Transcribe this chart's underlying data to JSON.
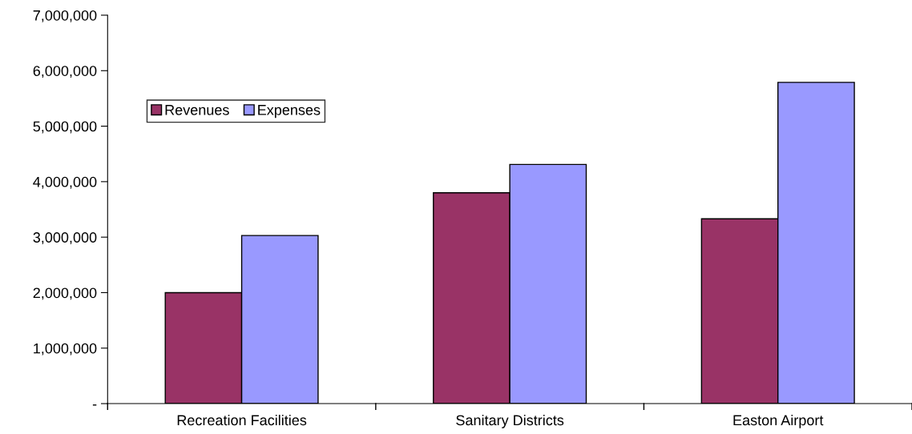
{
  "chart_data": {
    "type": "bar",
    "categories": [
      "Recreation Facilities",
      "Sanitary Districts",
      "Easton Airport"
    ],
    "series": [
      {
        "name": "Revenues",
        "color": "#993366",
        "values": [
          2000000,
          3800000,
          3330000
        ]
      },
      {
        "name": "Expenses",
        "color": "#9999ff",
        "values": [
          3030000,
          4310000,
          5790000
        ]
      }
    ],
    "ylim": [
      0,
      7000000
    ],
    "yticks": [
      {
        "value": 0,
        "label": "-"
      },
      {
        "value": 1000000,
        "label": "1,000,000"
      },
      {
        "value": 2000000,
        "label": "2,000,000"
      },
      {
        "value": 3000000,
        "label": "3,000,000"
      },
      {
        "value": 4000000,
        "label": "4,000,000"
      },
      {
        "value": 5000000,
        "label": "5,000,000"
      },
      {
        "value": 6000000,
        "label": "6,000,000"
      },
      {
        "value": 7000000,
        "label": "7,000,000"
      }
    ],
    "grid": false,
    "legend": "top left"
  }
}
